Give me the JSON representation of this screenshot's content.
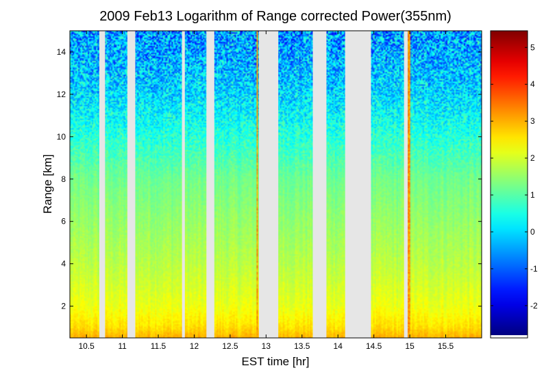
{
  "chart_data": {
    "type": "heatmap",
    "title": "2009 Feb13  Logarithm of Range corrected Power(355nm)",
    "xlabel": "EST time [hr]",
    "ylabel": "Range [km]",
    "xlim": [
      10.27,
      16.0
    ],
    "ylim": [
      0.5,
      15.0
    ],
    "x_ticks": [
      10.5,
      11,
      11.5,
      12,
      12.5,
      13,
      13.5,
      14,
      14.5,
      15,
      15.5
    ],
    "x_tick_labels": [
      "10.5",
      "11",
      "11.5",
      "12",
      "12.5",
      "13",
      "13.5",
      "14",
      "14.5",
      "15",
      "15.5"
    ],
    "y_ticks": [
      2,
      4,
      6,
      8,
      10,
      12,
      14
    ],
    "y_tick_labels": [
      "2",
      "4",
      "6",
      "8",
      "10",
      "12",
      "14"
    ],
    "colorbar": {
      "colormap": "jet",
      "range": [
        -2.8,
        5.45
      ],
      "ticks": [
        -2,
        -1,
        0,
        1,
        2,
        3,
        4,
        5
      ],
      "tick_labels": [
        "-2",
        "-1",
        "0",
        "1",
        "2",
        "3",
        "4",
        "5"
      ]
    },
    "value_profile": {
      "range_km": [
        0.5,
        1.0,
        2.0,
        3.0,
        4.0,
        6.0,
        8.0,
        10.0,
        12.0,
        14.0,
        15.0
      ],
      "log_power": [
        3.0,
        2.6,
        2.2,
        2.0,
        1.8,
        1.5,
        1.2,
        0.6,
        0.0,
        -0.4,
        -0.5
      ]
    },
    "data_gaps_hr": [
      [
        10.68,
        10.76
      ],
      [
        11.07,
        11.18
      ],
      [
        11.83,
        11.87
      ],
      [
        12.17,
        12.28
      ],
      [
        12.9,
        13.17
      ],
      [
        13.65,
        13.84
      ],
      [
        14.1,
        14.46
      ],
      [
        14.92,
        14.97
      ]
    ],
    "high_signal_columns_hr": [
      12.88,
      14.99
    ],
    "gap_color": "#e6e6e6",
    "background_color": "#ffffff"
  }
}
